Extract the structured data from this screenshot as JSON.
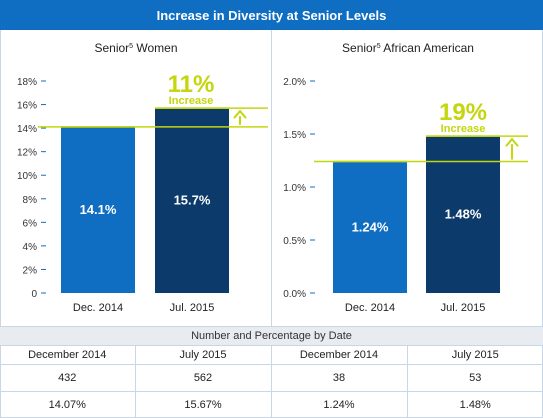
{
  "title": "Increase in Diversity at Senior Levels",
  "colors": {
    "light_bar": "#0f6ec2",
    "dark_bar": "#0b3a6b",
    "accent": "#c3d60e",
    "header": "#0f6ec2"
  },
  "chart_data": [
    {
      "type": "bar",
      "title_main": "Senior",
      "title_sup": "5",
      "title_rest": " Women",
      "categories": [
        "Dec. 2014",
        "Jul. 2015"
      ],
      "values": [
        14.1,
        15.7
      ],
      "value_labels": [
        "14.1%",
        "15.7%"
      ],
      "ylim": [
        0,
        18
      ],
      "yticks": [
        0,
        2,
        4,
        6,
        8,
        10,
        12,
        14,
        16,
        18
      ],
      "ytick_labels": [
        "0",
        "2%",
        "4%",
        "6%",
        "8%",
        "10%",
        "12%",
        "14%",
        "16%",
        "18%"
      ],
      "callout_value": "11%",
      "callout_label": "Increase"
    },
    {
      "type": "bar",
      "title_main": "Senior",
      "title_sup": "5",
      "title_rest": " African American",
      "categories": [
        "Dec. 2014",
        "Jul. 2015"
      ],
      "values": [
        1.24,
        1.48
      ],
      "value_labels": [
        "1.24%",
        "1.48%"
      ],
      "ylim": [
        0,
        2.0
      ],
      "yticks": [
        0,
        0.5,
        1.0,
        1.5,
        2.0
      ],
      "ytick_labels": [
        "0.0%",
        "0.5%",
        "1.0%",
        "1.5%",
        "2.0%"
      ],
      "callout_value": "19%",
      "callout_label": "Increase"
    }
  ],
  "table": {
    "caption": "Number and Percentage by Date",
    "headers": [
      "December 2014",
      "July 2015",
      "December 2014",
      "July 2015"
    ],
    "counts": [
      "432",
      "562",
      "38",
      "53"
    ],
    "percents": [
      "14.07%",
      "15.67%",
      "1.24%",
      "1.48%"
    ]
  }
}
